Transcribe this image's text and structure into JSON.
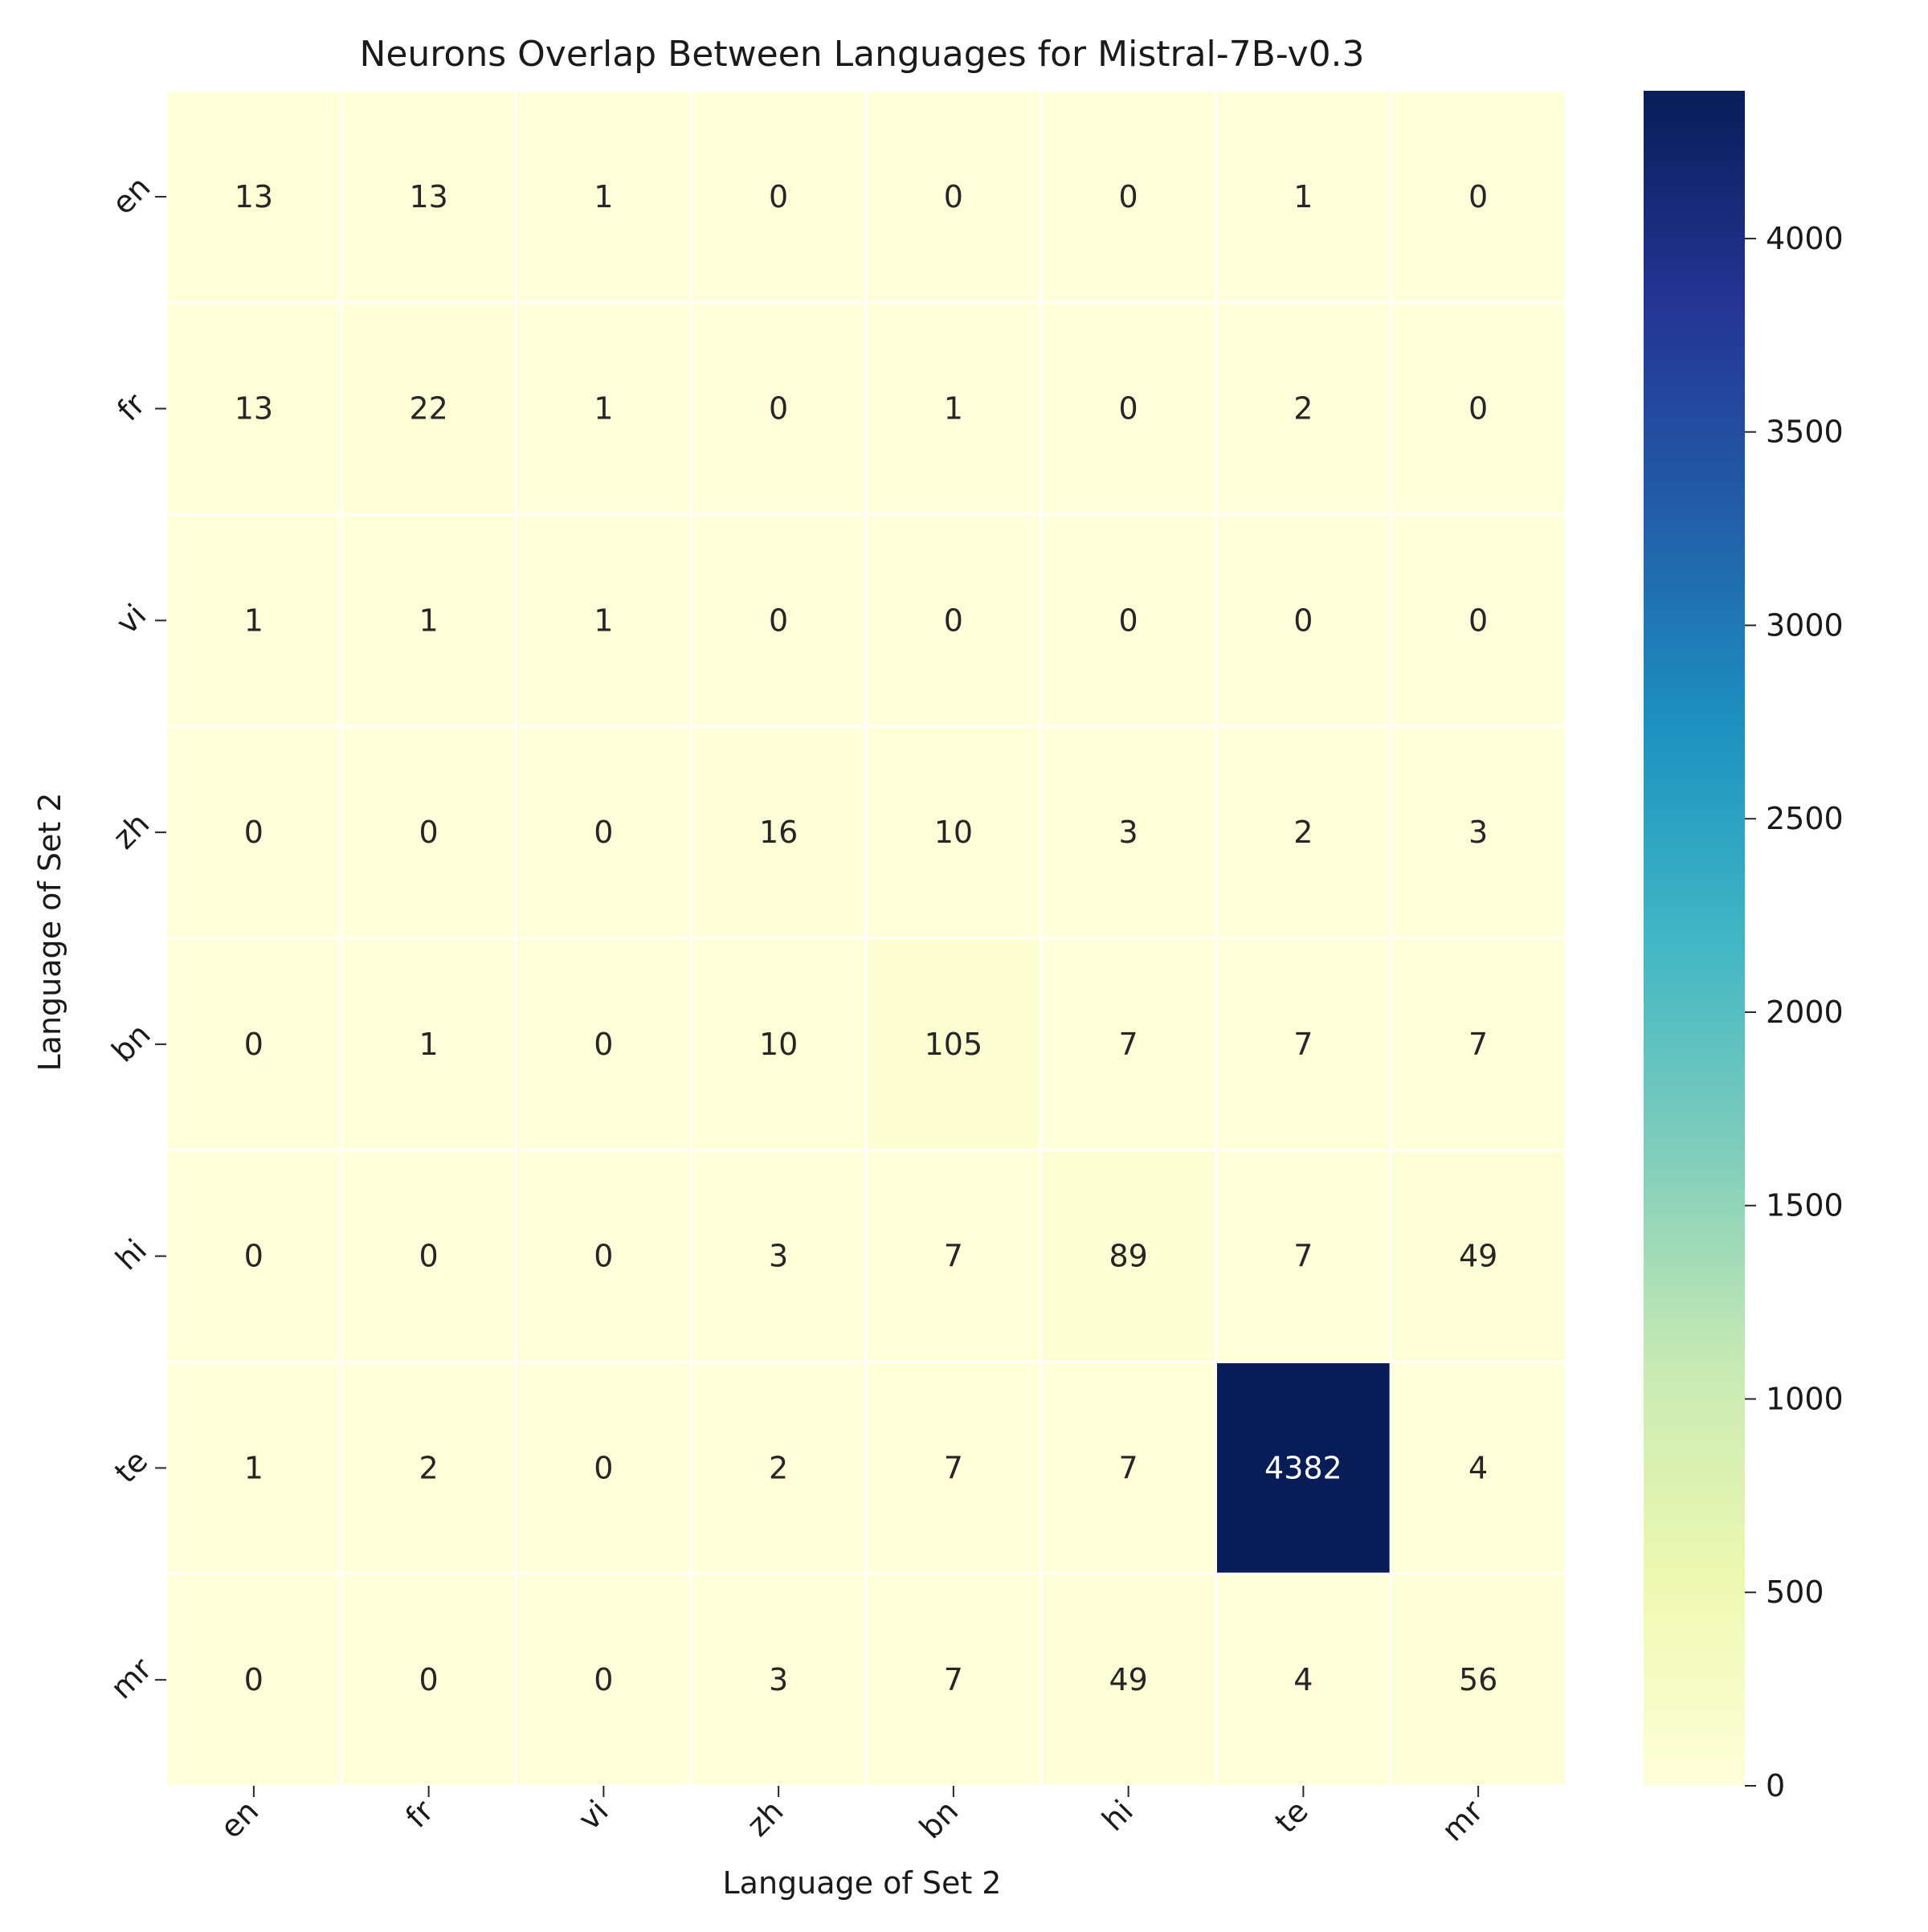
{
  "chart_data": {
    "type": "heatmap",
    "title": "Neurons Overlap Between Languages for Mistral-7B-v0.3",
    "xlabel": "Language of Set 2",
    "ylabel": "Language of Set 2",
    "x_categories": [
      "en",
      "fr",
      "vi",
      "zh",
      "bn",
      "hi",
      "te",
      "mr"
    ],
    "y_categories": [
      "en",
      "fr",
      "vi",
      "zh",
      "bn",
      "hi",
      "te",
      "mr"
    ],
    "values": [
      [
        13,
        13,
        1,
        0,
        0,
        0,
        1,
        0
      ],
      [
        13,
        22,
        1,
        0,
        1,
        0,
        2,
        0
      ],
      [
        1,
        1,
        1,
        0,
        0,
        0,
        0,
        0
      ],
      [
        0,
        0,
        0,
        16,
        10,
        3,
        2,
        3
      ],
      [
        0,
        1,
        0,
        10,
        105,
        7,
        7,
        7
      ],
      [
        0,
        0,
        0,
        3,
        7,
        89,
        7,
        49
      ],
      [
        1,
        2,
        0,
        2,
        7,
        7,
        4382,
        4
      ],
      [
        0,
        0,
        0,
        3,
        7,
        49,
        4,
        56
      ]
    ],
    "colormap": "YlGnBu",
    "colormap_stops": [
      "#ffffd9",
      "#edf8b1",
      "#c7e9b4",
      "#7fcdbb",
      "#41b6c4",
      "#1d91c0",
      "#225ea8",
      "#253494",
      "#081d58"
    ],
    "color_range": [
      0,
      4382
    ],
    "colorbar_ticks": [
      0,
      500,
      1000,
      1500,
      2000,
      2500,
      3000,
      3500,
      4000
    ],
    "grid": false,
    "cell_borders": "white"
  }
}
